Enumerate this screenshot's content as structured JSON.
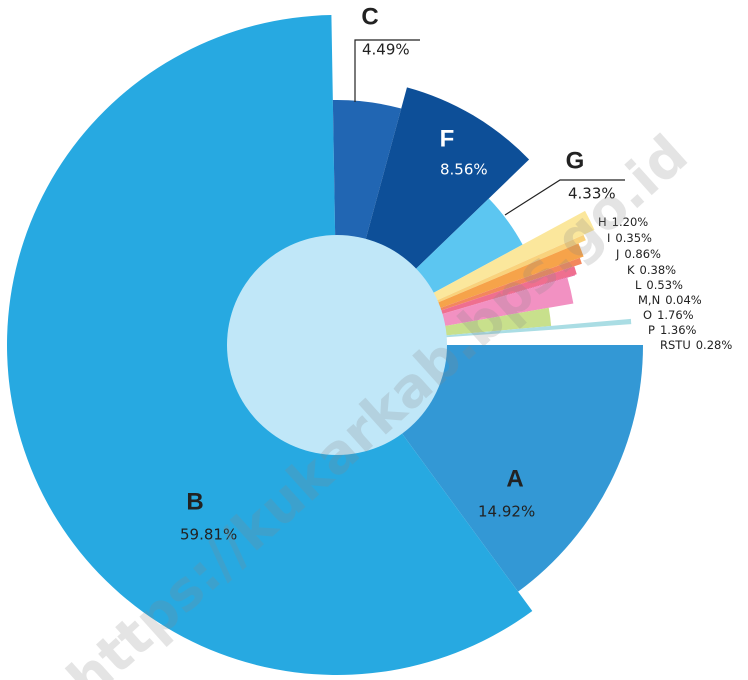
{
  "chart_data": {
    "type": "pie",
    "categories": [
      "A",
      "B",
      "C",
      "F",
      "G",
      "H",
      "I",
      "J",
      "K",
      "L",
      "M,N",
      "O",
      "P",
      "RSTU"
    ],
    "values": [
      14.92,
      59.81,
      4.49,
      8.56,
      4.33,
      1.2,
      0.35,
      0.86,
      0.38,
      0.53,
      0.04,
      1.76,
      1.36,
      0.28
    ],
    "value_labels": [
      "14.92%",
      "59.81%",
      "4.49%",
      "8.56%",
      "4.33%",
      "1.20%",
      "0.35%",
      "0.86%",
      "0.38%",
      "0.53%",
      "0.04%",
      "1.76%",
      "1.36%",
      "0.28%"
    ],
    "colors": [
      "#3398d5",
      "#27a9e1",
      "#2166b3",
      "#0d4f98",
      "#5cc6f1",
      "#fbe79c",
      "#f9d27c",
      "#f6a34a",
      "#f3875c",
      "#ef6f8f",
      "#e95c9e",
      "#f291c2",
      "#c8e08c",
      "#aadde4"
    ],
    "watermark": "https://kukarkab.bps.go.id"
  }
}
